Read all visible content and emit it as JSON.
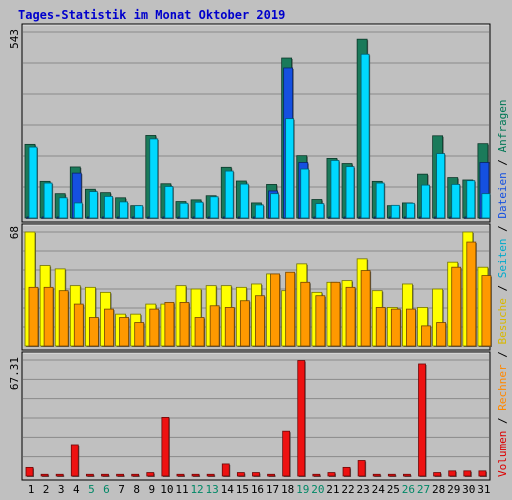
{
  "chart_data": {
    "type": "bar",
    "title": "Tages-Statistik im Monat Oktober 2019",
    "colors": {
      "background": "#c0c0c0",
      "title": "#0000cc",
      "anfragen": "#1a7a5a",
      "dateien": "#1550e0",
      "seiten": "#00d8ff",
      "besuche": "#ffff00",
      "rechner": "#ff9900",
      "volumen": "#ee1111",
      "weekend_label": "#008866",
      "weekday_label": "#000000"
    },
    "days": [
      "1",
      "2",
      "3",
      "4",
      "5",
      "6",
      "7",
      "8",
      "9",
      "10",
      "11",
      "12",
      "13",
      "14",
      "15",
      "16",
      "17",
      "18",
      "19",
      "20",
      "21",
      "22",
      "23",
      "24",
      "25",
      "26",
      "27",
      "28",
      "29",
      "30",
      "31"
    ],
    "weekend_days": [
      "5",
      "6",
      "12",
      "13",
      "19",
      "20",
      "26",
      "27"
    ],
    "panels": [
      {
        "ymax_label": "543",
        "ylim": [
          0,
          543
        ],
        "series": [
          {
            "name": "Anfragen",
            "values": [
              215,
              107,
              71,
              149,
              84,
              74,
              59,
              36,
              241,
              100,
              48,
              53,
              65,
              148,
              108,
              44,
              98,
              467,
              182,
              54,
              174,
              159,
              522,
              107,
              36,
              44,
              128,
              240,
              118,
              111,
              217
            ]
          },
          {
            "name": "Dateien",
            "values": [
              0,
              0,
              0,
              131,
              0,
              0,
              0,
              0,
              0,
              0,
              0,
              0,
              0,
              0,
              0,
              0,
              79,
              438,
              162,
              0,
              0,
              0,
              0,
              0,
              0,
              0,
              0,
              0,
              0,
              0,
              162
            ]
          },
          {
            "name": "Seiten",
            "values": [
              207,
              102,
              59,
              44,
              77,
              63,
              47,
              36,
              231,
              92,
              43,
              46,
              62,
              137,
              99,
              38,
              71,
              290,
              143,
              42,
              168,
              150,
              478,
              102,
              37,
              43,
              96,
              188,
              98,
              109,
              71
            ]
          }
        ]
      },
      {
        "ymax_label": "68",
        "ylim": [
          0,
          68
        ],
        "series": [
          {
            "name": "Besuche",
            "values": [
              68,
              48,
              46,
              36,
              35,
              32,
              19,
              19,
              25,
              25,
              36,
              34,
              36,
              36,
              35,
              37,
              43,
              33,
              49,
              32,
              38,
              39,
              52,
              33,
              23,
              37,
              23,
              34,
              50,
              68,
              47
            ]
          },
          {
            "name": "Rechner",
            "values": [
              35,
              35,
              33,
              25,
              17,
              22,
              17,
              14,
              22,
              26,
              26,
              17,
              24,
              23,
              27,
              30,
              43,
              44,
              38,
              30,
              38,
              35,
              45,
              23,
              22,
              22,
              12,
              14,
              47,
              62,
              42
            ]
          }
        ]
      },
      {
        "ymax_label": "67.31",
        "ylim": [
          0,
          67.31
        ],
        "series": [
          {
            "name": "Volumen",
            "values": [
              5,
              1,
              1,
              18,
              1,
              1,
              1,
              1,
              2,
              34,
              1,
              1,
              1,
              7,
              2,
              2,
              1,
              26,
              67,
              1,
              2,
              5,
              9,
              1,
              1,
              1,
              65,
              2,
              3,
              3,
              3
            ]
          }
        ]
      }
    ],
    "right_legend": [
      {
        "text": "Volumen",
        "color": "#dd0000"
      },
      {
        "text": " / ",
        "color": "#000000"
      },
      {
        "text": "Rechner",
        "color": "#ff8800"
      },
      {
        "text": " / ",
        "color": "#000000"
      },
      {
        "text": "Besuche",
        "color": "#d8b800"
      },
      {
        "text": " / ",
        "color": "#000000"
      },
      {
        "text": "Seiten",
        "color": "#00aacc"
      },
      {
        "text": " / ",
        "color": "#000000"
      },
      {
        "text": "Dateien",
        "color": "#1550e0"
      },
      {
        "text": " / ",
        "color": "#000000"
      },
      {
        "text": "Anfragen",
        "color": "#007755"
      }
    ]
  }
}
